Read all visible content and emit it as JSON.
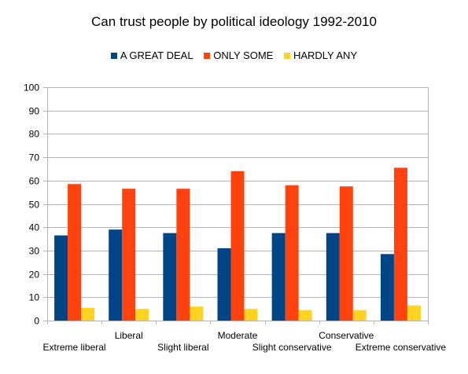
{
  "chart_data": {
    "type": "bar",
    "title": "Can trust people by political ideology 1992-2010",
    "categories": [
      "Extreme liberal",
      "Liberal",
      "Slight liberal",
      "Moderate",
      "Slight conservative",
      "Conservative",
      "Extreme conservative"
    ],
    "series": [
      {
        "name": "A GREAT DEAL",
        "color": "#004586",
        "values": [
          36.5,
          39,
          37.5,
          31,
          37.5,
          37.5,
          28.5
        ]
      },
      {
        "name": "ONLY SOME",
        "color": "#ff420e",
        "values": [
          58.5,
          56.5,
          56.5,
          64,
          58,
          57.5,
          65.5
        ]
      },
      {
        "name": "HARDLY ANY",
        "color": "#ffd320",
        "values": [
          5.5,
          5,
          6,
          5,
          4.5,
          4.5,
          6.5
        ]
      }
    ],
    "ylim": [
      0,
      100
    ],
    "yticks": [
      0,
      10,
      20,
      30,
      40,
      50,
      60,
      70,
      80,
      90,
      100
    ],
    "grid": true,
    "legend": "top-center"
  }
}
